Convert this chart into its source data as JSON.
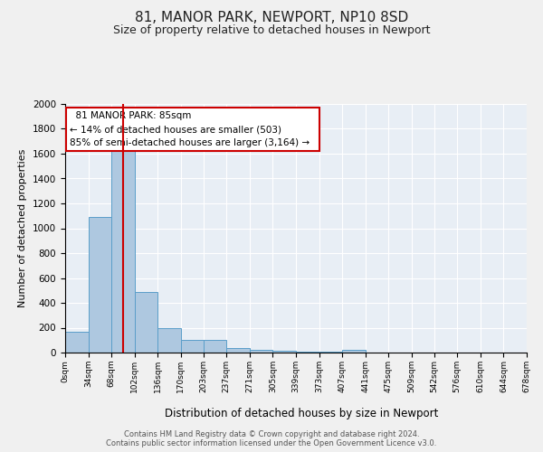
{
  "title": "81, MANOR PARK, NEWPORT, NP10 8SD",
  "subtitle": "Size of property relative to detached houses in Newport",
  "xlabel": "Distribution of detached houses by size in Newport",
  "ylabel": "Number of detached properties",
  "bin_labels": [
    "0sqm",
    "34sqm",
    "68sqm",
    "102sqm",
    "136sqm",
    "170sqm",
    "203sqm",
    "237sqm",
    "271sqm",
    "305sqm",
    "339sqm",
    "373sqm",
    "407sqm",
    "441sqm",
    "475sqm",
    "509sqm",
    "542sqm",
    "576sqm",
    "610sqm",
    "644sqm",
    "678sqm"
  ],
  "bar_heights": [
    165,
    1090,
    1620,
    485,
    200,
    100,
    100,
    40,
    25,
    15,
    10,
    5,
    20,
    0,
    0,
    0,
    0,
    0,
    0,
    0
  ],
  "bin_edges": [
    0,
    34,
    68,
    102,
    136,
    170,
    203,
    237,
    271,
    305,
    339,
    373,
    407,
    441,
    475,
    509,
    542,
    576,
    610,
    644,
    678
  ],
  "bar_color": "#aec8e0",
  "bar_edge_color": "#5a9ec9",
  "bg_color": "#e8eef5",
  "grid_color": "#ffffff",
  "fig_bg_color": "#f0f0f0",
  "annotation_box_color": "#cc0000",
  "property_line_x": 85,
  "annotation_text_line1": "81 MANOR PARK: 85sqm",
  "annotation_text_line2": "← 14% of detached houses are smaller (503)",
  "annotation_text_line3": "85% of semi-detached houses are larger (3,164) →",
  "footnote1": "Contains HM Land Registry data © Crown copyright and database right 2024.",
  "footnote2": "Contains public sector information licensed under the Open Government Licence v3.0.",
  "ylim": [
    0,
    2000
  ],
  "yticks": [
    0,
    200,
    400,
    600,
    800,
    1000,
    1200,
    1400,
    1600,
    1800,
    2000
  ],
  "title_fontsize": 11,
  "subtitle_fontsize": 9
}
